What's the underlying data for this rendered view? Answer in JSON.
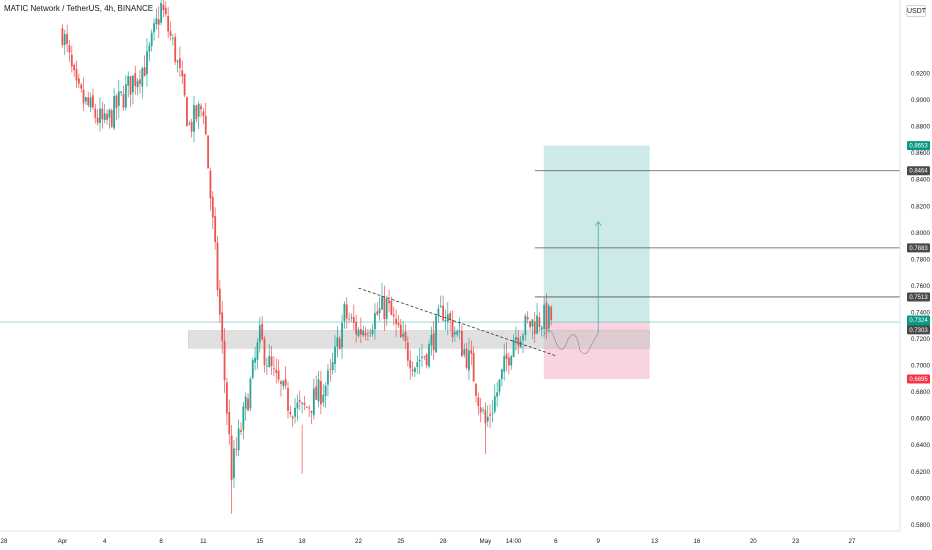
{
  "header": {
    "symbol": "MATIC Network / TetherUS",
    "interval": "4h",
    "exchange": "BINANCE",
    "currency": "USDT"
  },
  "colors": {
    "bull": "#26a69a",
    "bear": "#ef5350",
    "target_zone": "#b2dfdb",
    "stop_zone": "#f8bbd0",
    "support_zone": "#c8c8c8",
    "price_line": "#26a69a",
    "marker_dark": "#4a4a4a",
    "marker_green": "#089981",
    "marker_red": "#f23645"
  },
  "chart_data": {
    "type": "candlestick",
    "y_axis": {
      "min": 0.575,
      "max": 0.975,
      "ticks": [
        "0.9200",
        "0.9000",
        "0.8800",
        "0.8600",
        "0.8400",
        "0.8200",
        "0.8000",
        "0.7800",
        "0.7600",
        "0.7400",
        "0.7200",
        "0.7000",
        "0.6800",
        "0.6600",
        "0.6400",
        "0.6200",
        "0.6000",
        "0.5800"
      ]
    },
    "x_axis": {
      "ticks": [
        "28",
        "Apr",
        "4",
        "8",
        "11",
        "15",
        "18",
        "22",
        "25",
        "28",
        "May",
        "14:00",
        "6",
        "9",
        "13",
        "16",
        "20",
        "23",
        "27"
      ]
    },
    "price_markers": [
      {
        "value": "0.8653",
        "style": "green"
      },
      {
        "value": "0.8464",
        "style": "dark"
      },
      {
        "value": "0.7883",
        "style": "dark"
      },
      {
        "value": "0.7513",
        "style": "dark"
      },
      {
        "value": "0.7324",
        "style": "green",
        "sub": "07:07"
      },
      {
        "value": "0.7303",
        "style": "dark"
      },
      {
        "value": "0.6895",
        "style": "red"
      }
    ],
    "levels": [
      0.8464,
      0.7883,
      0.7513
    ],
    "current_price": 0.7324,
    "entry": 0.7324,
    "target": 0.8653,
    "stop": 0.6895,
    "support_zone": [
      0.7127,
      0.726
    ],
    "trendline": [
      {
        "x": "2022-04-22",
        "y": 0.758
      },
      {
        "x": "2022-05-06",
        "y": 0.707
      }
    ],
    "projection_arrow": [
      {
        "x": "2022-05-09",
        "y": 0.724
      },
      {
        "x": "2022-05-09",
        "y": 0.808
      }
    ],
    "anchors": [
      {
        "x": "2022-04-01",
        "y": 0.952
      },
      {
        "x": "2022-04-02",
        "y": 0.905
      },
      {
        "x": "2022-04-04",
        "y": 0.88
      },
      {
        "x": "2022-04-06",
        "y": 0.915
      },
      {
        "x": "2022-04-07",
        "y": 0.928
      },
      {
        "x": "2022-04-08",
        "y": 0.97
      },
      {
        "x": "2022-04-09",
        "y": 0.935
      },
      {
        "x": "2022-04-10",
        "y": 0.88
      },
      {
        "x": "2022-04-11",
        "y": 0.895
      },
      {
        "x": "2022-04-12",
        "y": 0.76
      },
      {
        "x": "2022-04-13",
        "y": 0.62
      },
      {
        "x": "2022-04-14",
        "y": 0.668
      },
      {
        "x": "2022-04-15",
        "y": 0.72
      },
      {
        "x": "2022-04-16",
        "y": 0.69
      },
      {
        "x": "2022-04-17",
        "y": 0.672
      },
      {
        "x": "2022-04-18",
        "y": 0.665
      },
      {
        "x": "2022-04-19",
        "y": 0.676
      },
      {
        "x": "2022-04-20",
        "y": 0.69
      },
      {
        "x": "2022-04-21",
        "y": 0.738
      },
      {
        "x": "2022-04-22",
        "y": 0.725
      },
      {
        "x": "2022-04-24",
        "y": 0.745
      },
      {
        "x": "2022-04-25",
        "y": 0.718
      },
      {
        "x": "2022-04-26",
        "y": 0.702
      },
      {
        "x": "2022-04-27",
        "y": 0.712
      },
      {
        "x": "2022-04-28",
        "y": 0.742
      },
      {
        "x": "2022-04-29",
        "y": 0.722
      },
      {
        "x": "2022-04-30",
        "y": 0.7
      },
      {
        "x": "2022-05-01",
        "y": 0.655
      },
      {
        "x": "2022-05-02",
        "y": 0.685
      },
      {
        "x": "2022-05-03",
        "y": 0.722
      },
      {
        "x": "2022-05-04",
        "y": 0.73
      },
      {
        "x": "2022-05-05",
        "y": 0.735
      }
    ]
  }
}
